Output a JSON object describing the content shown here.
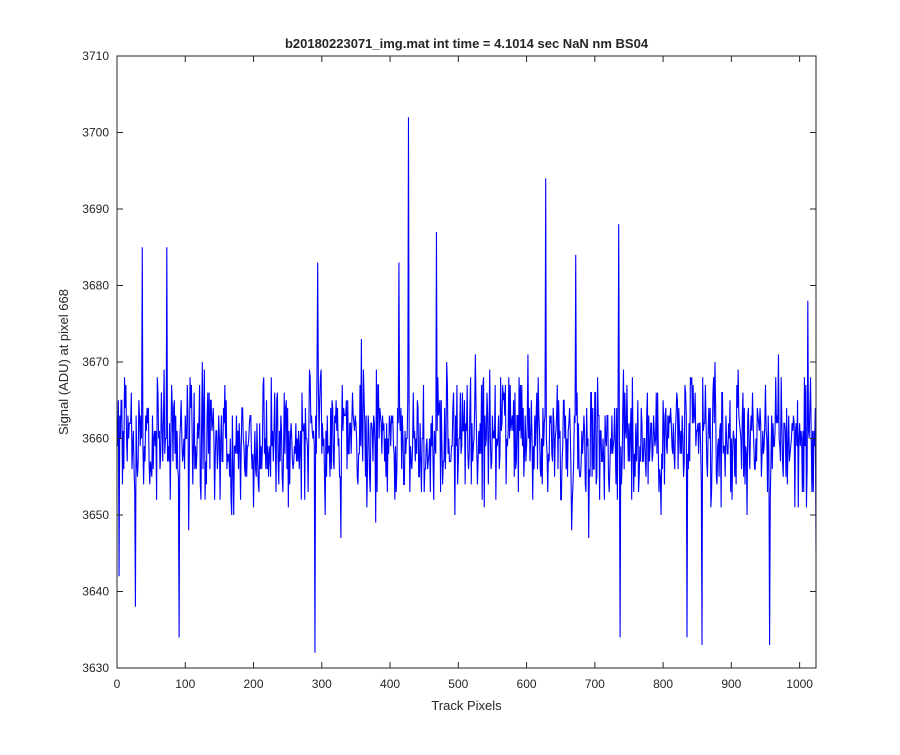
{
  "chart_data": {
    "type": "line",
    "title": "b20180223071_img.mat int time = 4.1014 sec  NaN nm BS04",
    "xlabel": "Track Pixels",
    "ylabel": "Signal (ADU) at pixel 668",
    "xlim": [
      0,
      1024
    ],
    "ylim": [
      3630,
      3710
    ],
    "xticks": [
      0,
      100,
      200,
      300,
      400,
      500,
      600,
      700,
      800,
      900,
      1000
    ],
    "yticks": [
      3630,
      3640,
      3650,
      3660,
      3670,
      3680,
      3690,
      3700,
      3710
    ],
    "grid": false,
    "box": true,
    "series": [
      {
        "color": "#0000ff",
        "x_start": 1,
        "x_step": 1,
        "count": 1024,
        "mean": 3660,
        "spread": 6.5,
        "notable_points": [
          {
            "x": 3,
            "y": 3642
          },
          {
            "x": 27,
            "y": 3638
          },
          {
            "x": 37,
            "y": 3685
          },
          {
            "x": 73,
            "y": 3685
          },
          {
            "x": 91,
            "y": 3634
          },
          {
            "x": 290,
            "y": 3632
          },
          {
            "x": 294,
            "y": 3683
          },
          {
            "x": 413,
            "y": 3683
          },
          {
            "x": 427,
            "y": 3702
          },
          {
            "x": 468,
            "y": 3687
          },
          {
            "x": 628,
            "y": 3694
          },
          {
            "x": 672,
            "y": 3684
          },
          {
            "x": 735,
            "y": 3688
          },
          {
            "x": 737,
            "y": 3634
          },
          {
            "x": 835,
            "y": 3634
          },
          {
            "x": 857,
            "y": 3633
          },
          {
            "x": 956,
            "y": 3633
          },
          {
            "x": 1012,
            "y": 3678
          },
          {
            "x": 1024,
            "y": 3645
          }
        ]
      }
    ]
  }
}
